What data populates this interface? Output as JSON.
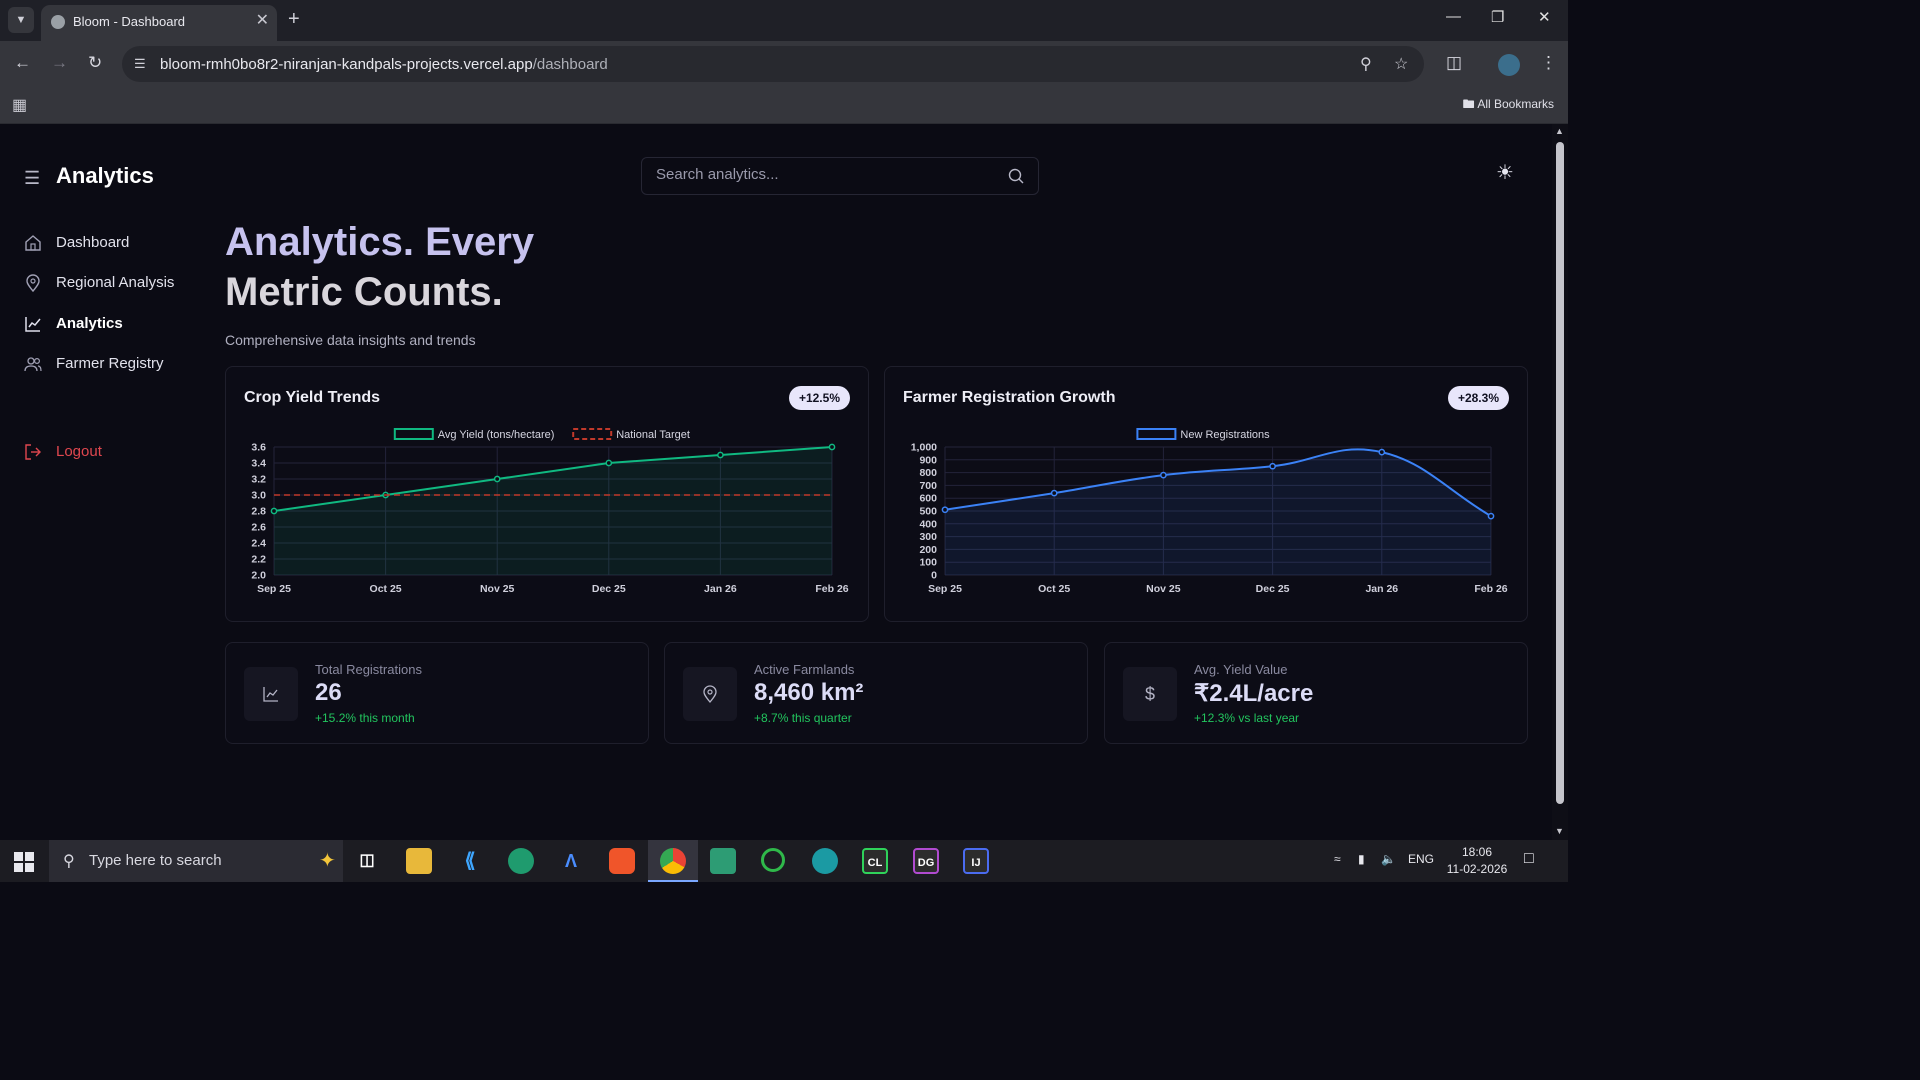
{
  "browser": {
    "tab_title": "Bloom - Dashboard",
    "url_host": "bloom-rmh0bo8r2-niranjan-kandpals-projects.vercel.app",
    "url_path": "/dashboard",
    "all_bookmarks": "All Bookmarks"
  },
  "app": {
    "brand": "Analytics",
    "search_placeholder": "Search analytics...",
    "nav": [
      {
        "label": "Dashboard",
        "icon": "home-icon"
      },
      {
        "label": "Regional Analysis",
        "icon": "map-pin-icon"
      },
      {
        "label": "Analytics",
        "icon": "line-chart-icon",
        "active": true
      },
      {
        "label": "Farmer Registry",
        "icon": "users-icon"
      }
    ],
    "logout": "Logout",
    "hero_line1": "Analytics. Every",
    "hero_line2": "Metric Counts.",
    "subtitle": "Comprehensive data insights and trends"
  },
  "cards": {
    "crop": {
      "title": "Crop Yield Trends",
      "badge": "+12.5%"
    },
    "farmer": {
      "title": "Farmer Registration Growth",
      "badge": "+28.3%"
    }
  },
  "stats": [
    {
      "label": "Total Registrations",
      "value": "26",
      "change": "+15.2% this month",
      "icon": "trend-icon"
    },
    {
      "label": "Active Farmlands",
      "value": "8,460 km²",
      "change": "+8.7% this quarter",
      "icon": "map-pin-icon"
    },
    {
      "label": "Avg. Yield Value",
      "value": "₹2.4L/acre",
      "change": "+12.3% vs last year",
      "icon": "dollar-icon"
    }
  ],
  "taskbar": {
    "search_placeholder": "Type here to search",
    "lang": "ENG",
    "time": "18:06",
    "date": "11-02-2026"
  },
  "colors": {
    "accent_green": "#22c55e",
    "line_green": "#10b981",
    "line_blue": "#3b82f6",
    "target_red": "#c0392b",
    "logout_red": "#e0474f"
  },
  "chart_data": [
    {
      "type": "line",
      "title": "Crop Yield Trends",
      "x": [
        "Sep 25",
        "Oct 25",
        "Nov 25",
        "Dec 25",
        "Jan 26",
        "Feb 26"
      ],
      "series": [
        {
          "name": "Avg Yield (tons/hectare)",
          "values": [
            2.8,
            3.0,
            3.2,
            3.4,
            3.5,
            3.6
          ],
          "fill": true
        },
        {
          "name": "National Target",
          "values": [
            3.0,
            3.0,
            3.0,
            3.0,
            3.0,
            3.0
          ],
          "dashed": true
        }
      ],
      "ylim": [
        2.0,
        3.6
      ],
      "yticks": [
        "2.0",
        "2.2",
        "2.4",
        "2.6",
        "2.8",
        "3.0",
        "3.2",
        "3.4",
        "3.6"
      ],
      "grid": true,
      "legend": "top"
    },
    {
      "type": "line",
      "title": "Farmer Registration Growth",
      "x": [
        "Sep 25",
        "Oct 25",
        "Nov 25",
        "Dec 25",
        "Jan 26",
        "Feb 26"
      ],
      "series": [
        {
          "name": "New Registrations",
          "values": [
            510,
            640,
            780,
            850,
            960,
            460
          ],
          "fill": true
        }
      ],
      "ylim": [
        0,
        1000
      ],
      "yticks": [
        "0",
        "100",
        "200",
        "300",
        "400",
        "500",
        "600",
        "700",
        "800",
        "900",
        "1,000"
      ],
      "grid": true,
      "legend": "top"
    }
  ]
}
